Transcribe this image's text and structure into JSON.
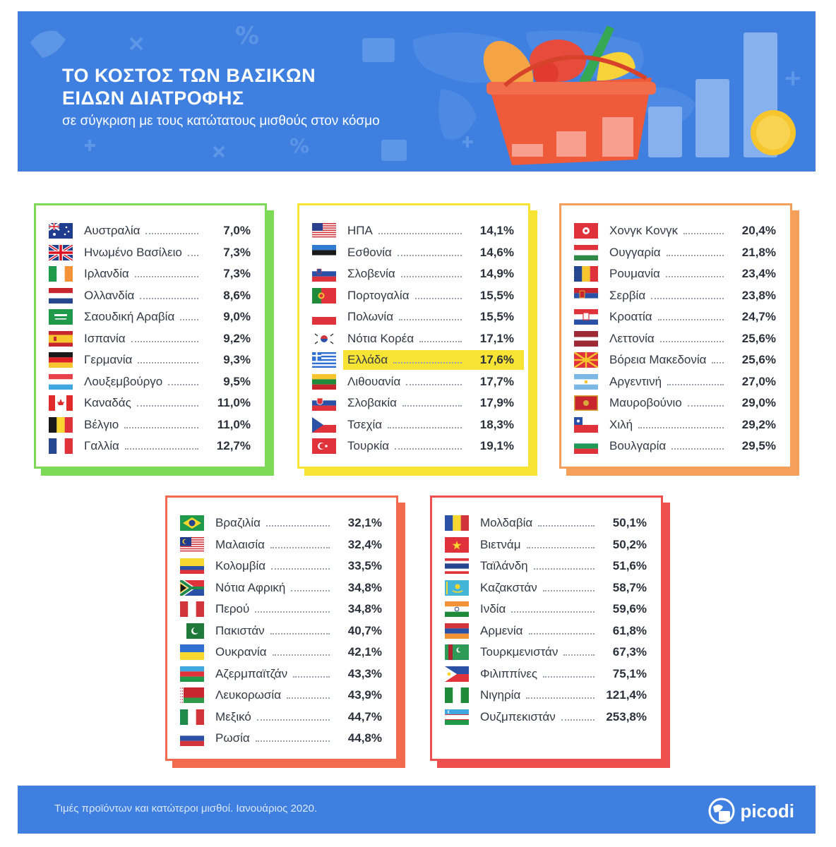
{
  "header": {
    "title_line1": "ΤΟ ΚΟΣΤΟΣ ΤΩΝ ΒΑΣΙΚΩΝ",
    "title_line2": "ΕΙΔΩΝ ΔΙΑΤΡΟΦΗΣ",
    "subtitle": "σε σύγκριση με τους κατώτατους μισθούς στον κόσμο"
  },
  "footer": {
    "note": "Τιμές προϊόντων και κατώτεροι μισθοί. Ιανουάριος 2020.",
    "brand": "picodi"
  },
  "colors": {
    "banner": "#3e7fe0",
    "group1": "#7ed957",
    "group2": "#f7e334",
    "group3": "#f5a05a",
    "group4": "#f26b4e",
    "group5": "#ee4f4f",
    "highlight": "#f7e334"
  },
  "chart_data": {
    "type": "table",
    "unit": "%",
    "highlight": "Ελλάδα",
    "groups": [
      {
        "rows": [
          {
            "country": "Αυστραλία",
            "value": 7.0,
            "label": "7,0%",
            "flag": "australia"
          },
          {
            "country": "Ηνωμένο Βασίλειο",
            "value": 7.3,
            "label": "7,3%",
            "flag": "uk"
          },
          {
            "country": "Ιρλανδία",
            "value": 7.3,
            "label": "7,3%",
            "flag": "ireland"
          },
          {
            "country": "Ολλανδία",
            "value": 8.6,
            "label": "8,6%",
            "flag": "netherlands"
          },
          {
            "country": "Σαουδική Αραβία",
            "value": 9.0,
            "label": "9,0%",
            "flag": "saudi-arabia"
          },
          {
            "country": "Ισπανία",
            "value": 9.2,
            "label": "9,2%",
            "flag": "spain"
          },
          {
            "country": "Γερμανία",
            "value": 9.3,
            "label": "9,3%",
            "flag": "germany"
          },
          {
            "country": "Λουξεμβούργο",
            "value": 9.5,
            "label": "9,5%",
            "flag": "luxembourg"
          },
          {
            "country": "Καναδάς",
            "value": 11.0,
            "label": "11,0%",
            "flag": "canada"
          },
          {
            "country": "Βέλγιο",
            "value": 11.0,
            "label": "11,0%",
            "flag": "belgium"
          },
          {
            "country": "Γαλλία",
            "value": 12.7,
            "label": "12,7%",
            "flag": "france"
          }
        ]
      },
      {
        "rows": [
          {
            "country": "ΗΠΑ",
            "value": 14.1,
            "label": "14,1%",
            "flag": "usa"
          },
          {
            "country": "Εσθονία",
            "value": 14.6,
            "label": "14,6%",
            "flag": "estonia"
          },
          {
            "country": "Σλοβενία",
            "value": 14.9,
            "label": "14,9%",
            "flag": "slovenia"
          },
          {
            "country": "Πορτογαλία",
            "value": 15.5,
            "label": "15,5%",
            "flag": "portugal"
          },
          {
            "country": "Πολωνία",
            "value": 15.5,
            "label": "15,5%",
            "flag": "poland"
          },
          {
            "country": "Νότια Κορέα",
            "value": 17.1,
            "label": "17,1%",
            "flag": "south-korea"
          },
          {
            "country": "Ελλάδα",
            "value": 17.6,
            "label": "17,6%",
            "flag": "greece"
          },
          {
            "country": "Λιθουανία",
            "value": 17.7,
            "label": "17,7%",
            "flag": "lithuania"
          },
          {
            "country": "Σλοβακία",
            "value": 17.9,
            "label": "17,9%",
            "flag": "slovakia"
          },
          {
            "country": "Τσεχία",
            "value": 18.3,
            "label": "18,3%",
            "flag": "czechia"
          },
          {
            "country": "Τουρκία",
            "value": 19.1,
            "label": "19,1%",
            "flag": "turkey"
          }
        ]
      },
      {
        "rows": [
          {
            "country": "Χονγκ Κονγκ",
            "value": 20.4,
            "label": "20,4%",
            "flag": "hong-kong"
          },
          {
            "country": "Ουγγαρία",
            "value": 21.8,
            "label": "21,8%",
            "flag": "hungary"
          },
          {
            "country": "Ρουμανία",
            "value": 23.4,
            "label": "23,4%",
            "flag": "romania"
          },
          {
            "country": "Σερβία",
            "value": 23.8,
            "label": "23,8%",
            "flag": "serbia"
          },
          {
            "country": "Κροατία",
            "value": 24.7,
            "label": "24,7%",
            "flag": "croatia"
          },
          {
            "country": "Λεττονία",
            "value": 25.6,
            "label": "25,6%",
            "flag": "latvia"
          },
          {
            "country": "Βόρεια Μακεδονία",
            "value": 25.6,
            "label": "25,6%",
            "flag": "north-macedonia"
          },
          {
            "country": "Αργεντινή",
            "value": 27.0,
            "label": "27,0%",
            "flag": "argentina"
          },
          {
            "country": "Μαυροβούνιο",
            "value": 29.0,
            "label": "29,0%",
            "flag": "montenegro"
          },
          {
            "country": "Χιλή",
            "value": 29.2,
            "label": "29,2%",
            "flag": "chile"
          },
          {
            "country": "Βουλγαρία",
            "value": 29.5,
            "label": "29,5%",
            "flag": "bulgaria"
          }
        ]
      },
      {
        "rows": [
          {
            "country": "Βραζιλία",
            "value": 32.1,
            "label": "32,1%",
            "flag": "brazil"
          },
          {
            "country": "Μαλαισία",
            "value": 32.4,
            "label": "32,4%",
            "flag": "malaysia"
          },
          {
            "country": "Κολομβία",
            "value": 33.5,
            "label": "33,5%",
            "flag": "colombia"
          },
          {
            "country": "Νότια Αφρική",
            "value": 34.8,
            "label": "34,8%",
            "flag": "south-africa"
          },
          {
            "country": "Περού",
            "value": 34.8,
            "label": "34,8%",
            "flag": "peru"
          },
          {
            "country": "Πακιστάν",
            "value": 40.7,
            "label": "40,7%",
            "flag": "pakistan"
          },
          {
            "country": "Ουκρανία",
            "value": 42.1,
            "label": "42,1%",
            "flag": "ukraine"
          },
          {
            "country": "Αζερμπαϊτζάν",
            "value": 43.3,
            "label": "43,3%",
            "flag": "azerbaijan"
          },
          {
            "country": "Λευκορωσία",
            "value": 43.9,
            "label": "43,9%",
            "flag": "belarus"
          },
          {
            "country": "Μεξικό",
            "value": 44.7,
            "label": "44,7%",
            "flag": "mexico"
          },
          {
            "country": "Ρωσία",
            "value": 44.8,
            "label": "44,8%",
            "flag": "russia"
          }
        ]
      },
      {
        "rows": [
          {
            "country": "Μολδαβία",
            "value": 50.1,
            "label": "50,1%",
            "flag": "moldova"
          },
          {
            "country": "Βιετνάμ",
            "value": 50.2,
            "label": "50,2%",
            "flag": "vietnam"
          },
          {
            "country": "Ταϊλάνδη",
            "value": 51.6,
            "label": "51,6%",
            "flag": "thailand"
          },
          {
            "country": "Καζακστάν",
            "value": 58.7,
            "label": "58,7%",
            "flag": "kazakhstan"
          },
          {
            "country": "Ινδία",
            "value": 59.6,
            "label": "59,6%",
            "flag": "india"
          },
          {
            "country": "Αρμενία",
            "value": 61.8,
            "label": "61,8%",
            "flag": "armenia"
          },
          {
            "country": "Τουρκμενιστάν",
            "value": 67.3,
            "label": "67,3%",
            "flag": "turkmenistan"
          },
          {
            "country": "Φιλιππίνες",
            "value": 75.1,
            "label": "75,1%",
            "flag": "philippines"
          },
          {
            "country": "Νιγηρία",
            "value": 121.4,
            "label": "121,4%",
            "flag": "nigeria"
          },
          {
            "country": "Ουζμπεκιστάν",
            "value": 253.8,
            "label": "253,8%",
            "flag": "uzbekistan"
          }
        ]
      }
    ]
  }
}
